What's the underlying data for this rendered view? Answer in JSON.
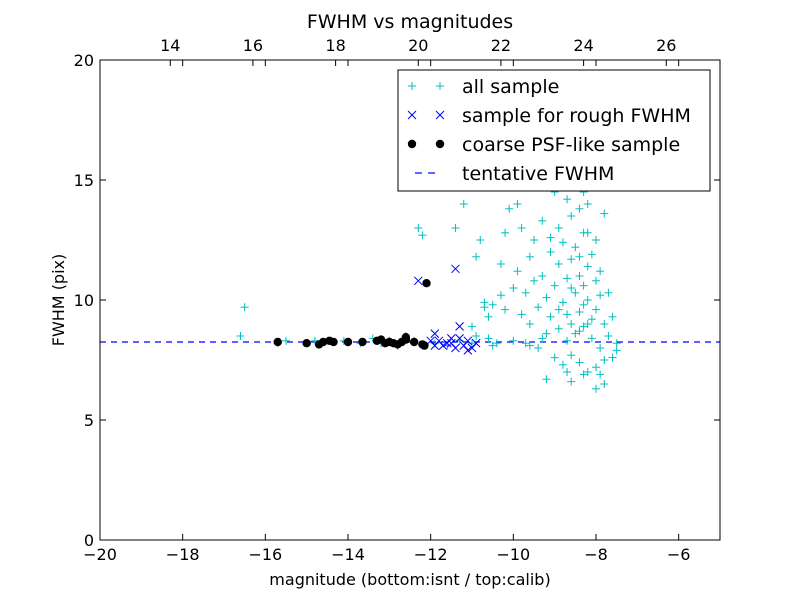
{
  "chart_data": {
    "type": "scatter",
    "title": "FWHM vs magnitudes",
    "xlabel": "magnitude (bottom:isnt / top:calib)",
    "ylabel": "FWHM (pix)",
    "xlim": [
      -20,
      -5
    ],
    "ylim": [
      0,
      20
    ],
    "x_ticks": [
      -20,
      -18,
      -16,
      -14,
      -12,
      -10,
      -8,
      -6
    ],
    "x_tick_labels": [
      "−20",
      "−18",
      "−16",
      "−14",
      "−12",
      "−10",
      "−8",
      "−6"
    ],
    "y_ticks": [
      0,
      5,
      10,
      15,
      20
    ],
    "y_tick_labels": [
      "0",
      "5",
      "10",
      "15",
      "20"
    ],
    "top_axis": {
      "offset": 32.3,
      "ticks": [
        14,
        16,
        18,
        20,
        22,
        24,
        26
      ],
      "tick_labels": [
        "14",
        "16",
        "18",
        "20",
        "22",
        "24",
        "26"
      ]
    },
    "grid": false,
    "legend_position": "top-right",
    "legend": [
      {
        "label": "all sample",
        "marker": "plus",
        "color": "#00BFBF"
      },
      {
        "label": "sample for rough FWHM",
        "marker": "x",
        "color": "#0000FF"
      },
      {
        "label": "coarse PSF-like sample",
        "marker": "dot",
        "color": "#000000"
      },
      {
        "label": "tentative FWHM",
        "marker": "dashed",
        "color": "#0000FF"
      }
    ],
    "tentative_fwhm": 8.25,
    "series": [
      {
        "name": "all sample",
        "marker": "plus",
        "color": "#00BFBF",
        "points": [
          [
            -16.5,
            9.7
          ],
          [
            -16.6,
            8.5
          ],
          [
            -15.7,
            8.2
          ],
          [
            -15.5,
            8.3
          ],
          [
            -15.0,
            8.2
          ],
          [
            -14.8,
            8.3
          ],
          [
            -14.4,
            8.3
          ],
          [
            -14.1,
            8.3
          ],
          [
            -13.7,
            8.2
          ],
          [
            -13.4,
            8.4
          ],
          [
            -13.2,
            8.2
          ],
          [
            -13.0,
            8.3
          ],
          [
            -12.8,
            8.1
          ],
          [
            -12.6,
            8.5
          ],
          [
            -12.4,
            8.3
          ],
          [
            -12.2,
            8.1
          ],
          [
            -12.2,
            12.7
          ],
          [
            -12.3,
            13.0
          ],
          [
            -11.4,
            13.0
          ],
          [
            -11.2,
            14.0
          ],
          [
            -11.9,
            8.2
          ],
          [
            -11.6,
            8.1
          ],
          [
            -11.3,
            8.3
          ],
          [
            -11.0,
            8.2
          ],
          [
            -10.9,
            8.5
          ],
          [
            -10.8,
            12.5
          ],
          [
            -10.9,
            11.8
          ],
          [
            -10.7,
            9.7
          ],
          [
            -10.7,
            9.9
          ],
          [
            -10.6,
            9.3
          ],
          [
            -10.6,
            8.4
          ],
          [
            -10.5,
            8.1
          ],
          [
            -10.3,
            10.2
          ],
          [
            -10.3,
            11.5
          ],
          [
            -10.2,
            9.6
          ],
          [
            -10.2,
            12.8
          ],
          [
            -10.1,
            13.8
          ],
          [
            -10.0,
            8.3
          ],
          [
            -10.0,
            10.5
          ],
          [
            -9.9,
            11.2
          ],
          [
            -9.9,
            14.0
          ],
          [
            -9.8,
            9.4
          ],
          [
            -9.8,
            13.0
          ],
          [
            -9.7,
            10.3
          ],
          [
            -9.7,
            8.2
          ],
          [
            -9.6,
            11.8
          ],
          [
            -9.6,
            9.0
          ],
          [
            -9.5,
            12.5
          ],
          [
            -9.5,
            10.8
          ],
          [
            -9.4,
            8.0
          ],
          [
            -9.4,
            9.7
          ],
          [
            -9.3,
            13.3
          ],
          [
            -9.3,
            11.0
          ],
          [
            -9.2,
            8.6
          ],
          [
            -9.2,
            10.1
          ],
          [
            -9.1,
            12.0
          ],
          [
            -9.1,
            9.3
          ],
          [
            -9.0,
            7.6
          ],
          [
            -9.0,
            14.5
          ],
          [
            -9.0,
            10.6
          ],
          [
            -8.9,
            8.8
          ],
          [
            -8.9,
            11.5
          ],
          [
            -8.9,
            13.0
          ],
          [
            -8.8,
            7.3
          ],
          [
            -8.8,
            9.9
          ],
          [
            -8.8,
            12.4
          ],
          [
            -8.7,
            8.3
          ],
          [
            -8.7,
            10.9
          ],
          [
            -8.7,
            14.2
          ],
          [
            -8.6,
            9.0
          ],
          [
            -8.6,
            11.7
          ],
          [
            -8.6,
            7.7
          ],
          [
            -8.6,
            13.5
          ],
          [
            -8.5,
            10.3
          ],
          [
            -8.5,
            8.6
          ],
          [
            -8.5,
            12.2
          ],
          [
            -8.5,
            15.0
          ],
          [
            -8.4,
            9.5
          ],
          [
            -8.4,
            11.0
          ],
          [
            -8.4,
            7.4
          ],
          [
            -8.4,
            13.8
          ],
          [
            -8.3,
            10.6
          ],
          [
            -8.3,
            8.9
          ],
          [
            -8.3,
            12.8
          ],
          [
            -8.3,
            9.8
          ],
          [
            -8.2,
            11.4
          ],
          [
            -8.2,
            7.0
          ],
          [
            -8.2,
            10.0
          ],
          [
            -8.2,
            14.0
          ],
          [
            -8.1,
            9.2
          ],
          [
            -8.1,
            11.9
          ],
          [
            -8.1,
            8.4
          ],
          [
            -8.0,
            10.8
          ],
          [
            -8.0,
            7.2
          ],
          [
            -8.0,
            9.6
          ],
          [
            -8.0,
            12.5
          ],
          [
            -7.9,
            8.0
          ],
          [
            -7.9,
            10.2
          ],
          [
            -7.9,
            11.2
          ],
          [
            -7.8,
            7.5
          ],
          [
            -7.8,
            9.0
          ],
          [
            -7.8,
            13.6
          ],
          [
            -7.7,
            8.5
          ],
          [
            -7.7,
            10.3
          ],
          [
            -7.6,
            7.6
          ],
          [
            -7.6,
            9.3
          ],
          [
            -7.5,
            8.2
          ],
          [
            -7.5,
            7.9
          ],
          [
            -8.6,
            6.6
          ],
          [
            -8.3,
            6.9
          ],
          [
            -8.0,
            6.3
          ],
          [
            -7.8,
            6.5
          ],
          [
            -7.9,
            6.9
          ],
          [
            -9.2,
            6.7
          ],
          [
            -8.7,
            7.0
          ],
          [
            -8.5,
            16.0
          ],
          [
            -8.7,
            15.5
          ],
          [
            -8.6,
            17.0
          ],
          [
            -9.5,
            15.2
          ],
          [
            -9.8,
            15.8
          ],
          [
            -8.9,
            14.8
          ],
          [
            -8.3,
            14.5
          ],
          [
            -9.1,
            12.6
          ],
          [
            -8.2,
            12.8
          ],
          [
            -8.4,
            11.8
          ],
          [
            -8.6,
            10.5
          ],
          [
            -8.2,
            9.0
          ],
          [
            -8.4,
            8.7
          ],
          [
            -8.7,
            9.4
          ],
          [
            -8.9,
            9.6
          ],
          [
            -9.3,
            8.4
          ],
          [
            -9.6,
            8.1
          ],
          [
            -10.4,
            8.2
          ],
          [
            -11.0,
            8.9
          ],
          [
            -10.5,
            9.8
          ]
        ]
      },
      {
        "name": "sample for rough FWHM",
        "marker": "x",
        "color": "#0000FF",
        "points": [
          [
            -12.3,
            10.8
          ],
          [
            -11.4,
            11.3
          ],
          [
            -11.3,
            8.9
          ],
          [
            -11.9,
            8.6
          ],
          [
            -11.8,
            8.3
          ],
          [
            -11.7,
            8.1
          ],
          [
            -11.6,
            8.2
          ],
          [
            -11.5,
            8.2
          ],
          [
            -11.4,
            8.0
          ],
          [
            -11.3,
            8.4
          ],
          [
            -11.2,
            8.1
          ],
          [
            -11.1,
            8.3
          ],
          [
            -11.0,
            8.0
          ],
          [
            -10.9,
            8.2
          ],
          [
            -12.0,
            8.3
          ],
          [
            -11.9,
            8.1
          ],
          [
            -11.5,
            8.4
          ],
          [
            -11.1,
            7.9
          ]
        ]
      },
      {
        "name": "coarse PSF-like sample",
        "marker": "dot",
        "color": "#000000",
        "points": [
          [
            -12.1,
            10.7
          ],
          [
            -15.7,
            8.25
          ],
          [
            -15.0,
            8.2
          ],
          [
            -14.7,
            8.15
          ],
          [
            -14.6,
            8.25
          ],
          [
            -14.45,
            8.3
          ],
          [
            -14.35,
            8.25
          ],
          [
            -14.0,
            8.25
          ],
          [
            -13.65,
            8.25
          ],
          [
            -13.3,
            8.3
          ],
          [
            -13.2,
            8.35
          ],
          [
            -13.1,
            8.2
          ],
          [
            -13.0,
            8.25
          ],
          [
            -12.9,
            8.2
          ],
          [
            -12.8,
            8.15
          ],
          [
            -12.7,
            8.25
          ],
          [
            -12.6,
            8.35
          ],
          [
            -12.6,
            8.45
          ],
          [
            -12.4,
            8.25
          ],
          [
            -12.2,
            8.15
          ],
          [
            -12.15,
            8.1
          ]
        ]
      }
    ]
  }
}
